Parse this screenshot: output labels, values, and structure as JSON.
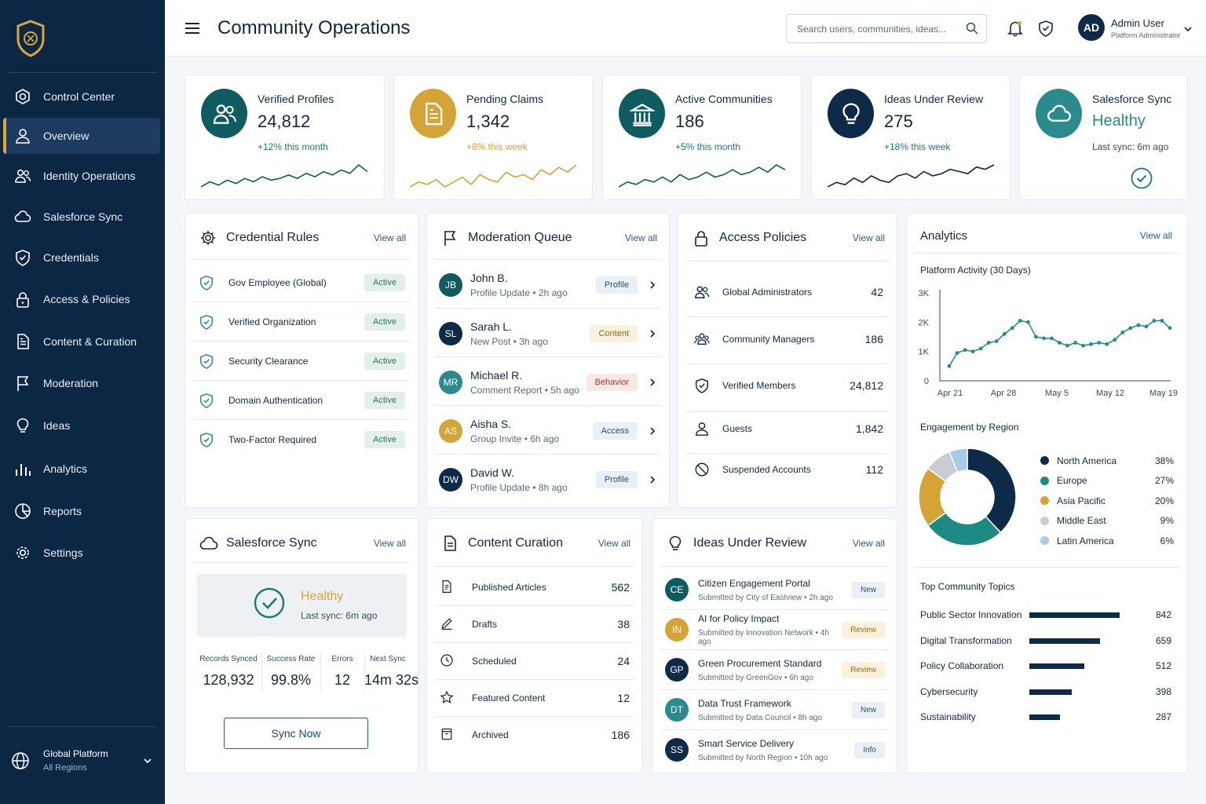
{
  "header": {
    "title": "Community Operations",
    "search_placeholder": "Search users, communities, ideas...",
    "user_initials": "AD",
    "user_name": "Admin User",
    "user_role": "Platform Administrator"
  },
  "sidebar": {
    "items": [
      {
        "label": "Control Center",
        "icon": "hexagon-icon"
      },
      {
        "label": "Overview",
        "icon": "user-icon",
        "active": true
      },
      {
        "label": "Identity Operations",
        "icon": "users-icon"
      },
      {
        "label": "Salesforce Sync",
        "icon": "cloud-icon"
      },
      {
        "label": "Credentials",
        "icon": "shield-icon"
      },
      {
        "label": "Access & Policies",
        "icon": "lock-icon"
      },
      {
        "label": "Content & Curation",
        "icon": "document-icon"
      },
      {
        "label": "Moderation",
        "icon": "flag-icon"
      },
      {
        "label": "Ideas",
        "icon": "lightbulb-icon"
      },
      {
        "label": "Analytics",
        "icon": "bar-chart-icon"
      },
      {
        "label": "Reports",
        "icon": "pie-chart-icon"
      },
      {
        "label": "Settings",
        "icon": "gear-icon"
      }
    ],
    "footer": {
      "title": "Global Platform",
      "subtitle": "All Regions"
    }
  },
  "kpis": [
    {
      "label": "Verified Profiles",
      "value": "24,812",
      "delta": "+12% this month",
      "color": "#0f5c60",
      "icon": "users-icon"
    },
    {
      "label": "Pending Claims",
      "value": "1,342",
      "delta": "+8% this week",
      "color": "#d4a437",
      "icon": "document-icon"
    },
    {
      "label": "Active Communities",
      "value": "186",
      "delta": "+5% this month",
      "color": "#0f5c60",
      "icon": "building-icon"
    },
    {
      "label": "Ideas Under Review",
      "value": "275",
      "delta": "+18% this week",
      "color": "#0d2a48",
      "icon": "lightbulb-icon"
    },
    {
      "label": "Salesforce Sync",
      "value": "Healthy",
      "delta": "Last sync: 6m ago",
      "color": "#2a8a8c",
      "icon": "cloud-icon"
    }
  ],
  "credential_rules": {
    "title": "Credential Rules",
    "view_all": "View all",
    "items": [
      {
        "name": "Gov Employee (Global)",
        "status": "Active"
      },
      {
        "name": "Verified Organization",
        "status": "Active"
      },
      {
        "name": "Security Clearance",
        "status": "Active"
      },
      {
        "name": "Domain Authentication",
        "status": "Active"
      },
      {
        "name": "Two-Factor Required",
        "status": "Active"
      }
    ]
  },
  "moderation_queue": {
    "title": "Moderation Queue",
    "view_all": "View all",
    "items": [
      {
        "initials": "JB",
        "name": "John B.",
        "detail": "Profile Update • 2h ago",
        "tag": "Profile",
        "tag_kind": "profile",
        "color": "#0f5c60"
      },
      {
        "initials": "SL",
        "name": "Sarah L.",
        "detail": "New Post • 3h ago",
        "tag": "Content",
        "tag_kind": "content",
        "color": "#0d2a48"
      },
      {
        "initials": "MR",
        "name": "Michael R.",
        "detail": "Comment Report • 5h ago",
        "tag": "Behavior",
        "tag_kind": "behavior",
        "color": "#2a8a8c"
      },
      {
        "initials": "AS",
        "name": "Aisha S.",
        "detail": "Group Invite • 6h ago",
        "tag": "Access",
        "tag_kind": "access",
        "color": "#d4a437"
      },
      {
        "initials": "DW",
        "name": "David W.",
        "detail": "Profile Update • 8h ago",
        "tag": "Profile",
        "tag_kind": "profile",
        "color": "#0d2a48"
      }
    ]
  },
  "access_policies": {
    "title": "Access Policies",
    "view_all": "View all",
    "items": [
      {
        "name": "Global Administrators",
        "count": "42",
        "icon": "users-icon"
      },
      {
        "name": "Community Managers",
        "count": "186",
        "icon": "group-icon"
      },
      {
        "name": "Verified Members",
        "count": "24,812",
        "icon": "shield-icon"
      },
      {
        "name": "Guests",
        "count": "1,842",
        "icon": "user-icon"
      },
      {
        "name": "Suspended Accounts",
        "count": "112",
        "icon": "block-icon"
      }
    ]
  },
  "salesforce_panel": {
    "title": "Salesforce Sync",
    "view_all": "View all",
    "status": "Healthy",
    "last_sync": "Last sync: 6m ago",
    "stats": [
      {
        "label": "Records Synced",
        "value": "128,932"
      },
      {
        "label": "Success Rate",
        "value": "99.8%"
      },
      {
        "label": "Errors",
        "value": "12"
      },
      {
        "label": "Next Sync",
        "value": "14m 32s"
      }
    ],
    "button": "Sync Now"
  },
  "content_curation": {
    "title": "Content Curation",
    "view_all": "View all",
    "items": [
      {
        "name": "Published Articles",
        "count": "562",
        "icon": "article-icon"
      },
      {
        "name": "Drafts",
        "count": "38",
        "icon": "pencil-icon"
      },
      {
        "name": "Scheduled",
        "count": "24",
        "icon": "clock-icon"
      },
      {
        "name": "Featured Content",
        "count": "12",
        "icon": "star-icon"
      },
      {
        "name": "Archived",
        "count": "186",
        "icon": "archive-icon"
      }
    ]
  },
  "ideas_review": {
    "title": "Ideas Under Review",
    "view_all": "View all",
    "items": [
      {
        "initials": "CE",
        "name": "Citizen Engagement Portal",
        "detail": "Submitted by City of Eastview • 2h ago",
        "tag": "New",
        "tag_kind": "new",
        "color": "#0f5c60"
      },
      {
        "initials": "IN",
        "name": "AI for Policy Impact",
        "detail": "Submitted by Innovation Network • 4h ago",
        "tag": "Review",
        "tag_kind": "review",
        "color": "#d4a437"
      },
      {
        "initials": "GP",
        "name": "Green Procurement Standard",
        "detail": "Submitted by GreenGov • 6h ago",
        "tag": "Review",
        "tag_kind": "review",
        "color": "#0d2a48"
      },
      {
        "initials": "DT",
        "name": "Data Trust Framework",
        "detail": "Submitted by Data Council • 8h ago",
        "tag": "New",
        "tag_kind": "new",
        "color": "#2a8a8c"
      },
      {
        "initials": "SS",
        "name": "Smart Service Delivery",
        "detail": "Submitted by North Region • 10h ago",
        "tag": "Info",
        "tag_kind": "info",
        "color": "#0d2a48"
      }
    ]
  },
  "analytics": {
    "title": "Analytics",
    "view_all": "View all",
    "activity_title": "Platform Activity (30 Days)",
    "engagement_title": "Engagement by Region",
    "topics_title": "Top Community Topics"
  },
  "chart_data": [
    {
      "type": "line",
      "title": "Platform Activity (30 Days)",
      "x_ticks": [
        "Apr 21",
        "Apr 28",
        "May 5",
        "May 12",
        "May 19"
      ],
      "y_ticks": [
        "0",
        "1K",
        "2K",
        "3K"
      ],
      "ylim": [
        0,
        3000
      ],
      "values": [
        500,
        950,
        1050,
        1000,
        1100,
        1300,
        1350,
        1600,
        1800,
        2050,
        2000,
        1500,
        1450,
        1450,
        1300,
        1200,
        1300,
        1200,
        1250,
        1300,
        1250,
        1400,
        1650,
        1800,
        1900,
        1850,
        2050,
        2050,
        1800
      ],
      "color": "#2a8a8c"
    },
    {
      "type": "pie",
      "title": "Engagement by Region",
      "categories": [
        "North America",
        "Europe",
        "Asia Pacific",
        "Middle East",
        "Latin America"
      ],
      "values": [
        38,
        27,
        20,
        9,
        6
      ],
      "labels": [
        "38%",
        "27%",
        "20%",
        "9%",
        "6%"
      ],
      "colors": [
        "#0d2a48",
        "#1e8a84",
        "#d4a437",
        "#c9cdd2",
        "#a7cbe8"
      ]
    },
    {
      "type": "bar",
      "title": "Top Community Topics",
      "categories": [
        "Public Sector Innovation",
        "Digital Transformation",
        "Policy Collaboration",
        "Cybersecurity",
        "Sustainability"
      ],
      "values": [
        842,
        659,
        512,
        398,
        287
      ],
      "labels": [
        "842",
        "659",
        "512",
        "398",
        "287"
      ],
      "color": "#0d2a48"
    }
  ],
  "sparklines": [
    {
      "color": "#0f5c60",
      "values": [
        3,
        6,
        4,
        7,
        5,
        8,
        6,
        9,
        7,
        8,
        10,
        8,
        11,
        9,
        12,
        10,
        13,
        11,
        16,
        12
      ]
    },
    {
      "color": "#d4a437",
      "values": [
        4,
        6,
        5,
        7,
        4,
        6,
        8,
        5,
        9,
        7,
        6,
        10,
        8,
        9,
        7,
        11,
        9,
        12,
        10,
        13
      ]
    },
    {
      "color": "#0f5c60",
      "values": [
        3,
        5,
        4,
        6,
        5,
        7,
        5,
        8,
        6,
        7,
        9,
        7,
        8,
        10,
        8,
        9,
        11,
        9,
        12,
        10
      ]
    },
    {
      "color": "#0d2a48",
      "values": [
        4,
        6,
        5,
        8,
        6,
        9,
        7,
        6,
        9,
        10,
        8,
        11,
        9,
        10,
        12,
        11,
        10,
        13,
        12,
        14
      ]
    }
  ]
}
